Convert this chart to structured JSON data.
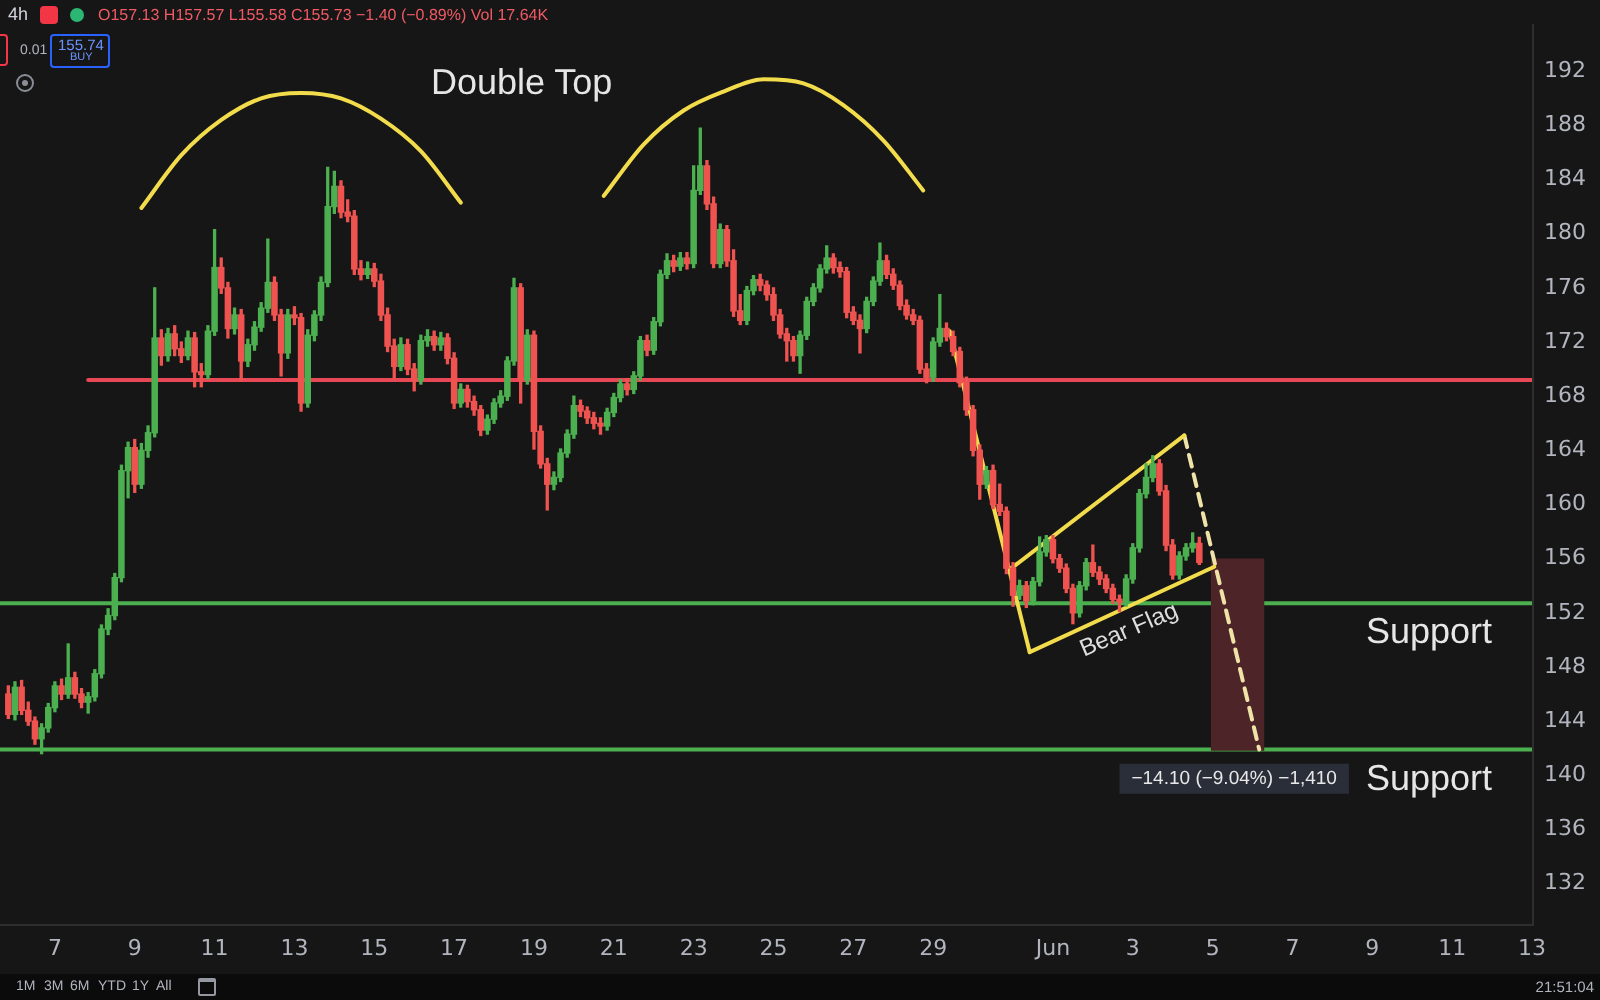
{
  "chart_data": {
    "type": "candlestick",
    "title": "4h",
    "subtitle": "O157.13 H157.57 L155.58 C155.73 −1.40 (−0.89%) Vol 17.64K",
    "x": [
      "--05-05T20:00",
      "--05-06T00:00",
      "--05-06T04:00",
      "--05-06T08:00",
      "--05-06T12:00",
      "--05-06T16:00",
      "--05-06T20:00",
      "--05-07T00:00",
      "--05-07T04:00",
      "--05-07T08:00",
      "--05-07T12:00",
      "--05-07T16:00",
      "--05-07T20:00",
      "--05-08T00:00",
      "--05-08T04:00",
      "--05-08T08:00",
      "--05-08T12:00",
      "--05-08T16:00",
      "--05-08T20:00",
      "--05-09T00:00",
      "--05-09T04:00",
      "--05-09T08:00",
      "--05-09T12:00",
      "--05-09T16:00",
      "--05-09T20:00",
      "--05-10T00:00",
      "--05-10T04:00",
      "--05-10T08:00",
      "--05-10T12:00",
      "--05-10T16:00",
      "--05-10T20:00",
      "--05-11T00:00",
      "--05-11T04:00",
      "--05-11T08:00",
      "--05-11T12:00",
      "--05-11T16:00",
      "--05-11T20:00",
      "--05-12T00:00",
      "--05-12T04:00",
      "--05-12T08:00",
      "--05-12T12:00",
      "--05-12T16:00",
      "--05-12T20:00",
      "--05-13T00:00",
      "--05-13T04:00",
      "--05-13T08:00",
      "--05-13T12:00",
      "--05-13T16:00",
      "--05-13T20:00",
      "--05-14T00:00",
      "--05-14T04:00",
      "--05-14T08:00",
      "--05-14T12:00",
      "--05-14T16:00",
      "--05-14T20:00",
      "--05-15T00:00",
      "--05-15T04:00",
      "--05-15T08:00",
      "--05-15T12:00",
      "--05-15T16:00",
      "--05-15T20:00",
      "--05-16T00:00",
      "--05-16T04:00",
      "--05-16T08:00",
      "--05-16T12:00",
      "--05-16T16:00",
      "--05-16T20:00",
      "--05-17T00:00",
      "--05-17T04:00",
      "--05-17T08:00",
      "--05-17T12:00",
      "--05-17T16:00",
      "--05-17T20:00",
      "--05-18T00:00",
      "--05-18T04:00",
      "--05-18T08:00",
      "--05-18T12:00",
      "--05-18T16:00",
      "--05-18T20:00",
      "--05-19T00:00",
      "--05-19T04:00",
      "--05-19T08:00",
      "--05-19T12:00",
      "--05-19T16:00",
      "--05-19T20:00",
      "--05-20T00:00",
      "--05-20T04:00",
      "--05-20T08:00",
      "--05-20T12:00",
      "--05-20T16:00",
      "--05-20T20:00",
      "--05-21T00:00",
      "--05-21T04:00",
      "--05-21T08:00",
      "--05-21T12:00",
      "--05-21T16:00",
      "--05-21T20:00",
      "--05-22T00:00",
      "--05-22T04:00",
      "--05-22T08:00",
      "--05-22T12:00",
      "--05-22T16:00",
      "--05-22T20:00",
      "--05-23T00:00",
      "--05-23T04:00",
      "--05-23T08:00",
      "--05-23T12:00",
      "--05-23T16:00",
      "--05-23T20:00",
      "--05-24T00:00",
      "--05-24T04:00",
      "--05-24T08:00",
      "--05-24T12:00",
      "--05-24T16:00",
      "--05-24T20:00",
      "--05-25T00:00",
      "--05-25T04:00",
      "--05-25T08:00",
      "--05-25T12:00",
      "--05-25T16:00",
      "--05-25T20:00",
      "--05-26T00:00",
      "--05-26T04:00",
      "--05-26T08:00",
      "--05-26T12:00",
      "--05-26T16:00",
      "--05-26T20:00",
      "--05-27T00:00",
      "--05-27T04:00",
      "--05-27T08:00",
      "--05-27T12:00",
      "--05-27T16:00",
      "--05-27T20:00",
      "--05-28T00:00",
      "--05-28T04:00",
      "--05-28T08:00",
      "--05-28T12:00",
      "--05-28T16:00",
      "--05-28T20:00",
      "--05-29T00:00",
      "--05-29T04:00",
      "--05-29T08:00",
      "--05-29T12:00",
      "--05-29T16:00",
      "--05-29T20:00",
      "--05-30T00:00",
      "--05-30T04:00",
      "--05-30T08:00",
      "--05-30T12:00",
      "--05-30T16:00",
      "--05-30T20:00",
      "--05-31T00:00",
      "--05-31T04:00",
      "--05-31T08:00",
      "--05-31T12:00",
      "--05-31T16:00",
      "--05-31T20:00",
      "--06-01T00:00",
      "--06-01T04:00",
      "--06-01T08:00",
      "--06-01T12:00",
      "--06-01T16:00",
      "--06-01T20:00",
      "--06-02T00:00",
      "--06-02T04:00",
      "--06-02T08:00",
      "--06-02T12:00",
      "--06-02T16:00",
      "--06-02T20:00",
      "--06-03T00:00",
      "--06-03T04:00",
      "--06-03T08:00",
      "--06-03T12:00",
      "--06-03T16:00",
      "--06-03T20:00",
      "--06-04T00:00",
      "--06-04T04:00",
      "--06-04T08:00",
      "--06-04T12:00",
      "--06-04T16:00"
    ],
    "ohlc": [
      [
        146.0,
        146.6,
        144.2,
        144.5
      ],
      [
        144.5,
        146.9,
        144.1,
        146.5
      ],
      [
        146.5,
        147.0,
        144.5,
        144.8
      ],
      [
        144.8,
        145.4,
        143.7,
        144.0
      ],
      [
        144.0,
        144.3,
        142.3,
        142.7
      ],
      [
        142.7,
        143.8,
        141.6,
        143.5
      ],
      [
        143.5,
        145.3,
        143.2,
        145.0
      ],
      [
        145.0,
        146.9,
        144.7,
        146.6
      ],
      [
        146.6,
        147.1,
        145.6,
        146.0
      ],
      [
        146.0,
        149.7,
        145.7,
        147.2
      ],
      [
        147.2,
        147.6,
        145.7,
        146.0
      ],
      [
        146.0,
        146.4,
        145.0,
        145.4
      ],
      [
        145.4,
        146.1,
        144.6,
        145.8
      ],
      [
        145.8,
        147.8,
        145.5,
        147.5
      ],
      [
        147.5,
        151.1,
        147.2,
        150.8
      ],
      [
        150.8,
        152.3,
        150.4,
        151.8
      ],
      [
        151.8,
        154.9,
        151.5,
        154.6
      ],
      [
        154.6,
        162.9,
        154.3,
        162.5
      ],
      [
        162.5,
        164.6,
        160.5,
        164.2
      ],
      [
        164.2,
        164.8,
        160.9,
        161.5
      ],
      [
        161.5,
        164.5,
        161.2,
        164.0
      ],
      [
        164.0,
        165.8,
        163.5,
        165.3
      ],
      [
        165.3,
        176.0,
        165.0,
        172.3
      ],
      [
        172.3,
        172.9,
        170.3,
        171.0
      ],
      [
        171.0,
        173.0,
        170.6,
        172.6
      ],
      [
        172.6,
        173.2,
        171.0,
        171.5
      ],
      [
        171.5,
        172.0,
        170.5,
        171.0
      ],
      [
        171.0,
        172.8,
        170.7,
        172.3
      ],
      [
        172.3,
        172.7,
        168.7,
        169.8
      ],
      [
        169.8,
        170.4,
        168.7,
        169.6
      ],
      [
        169.6,
        173.2,
        169.3,
        172.8
      ],
      [
        172.8,
        180.3,
        172.5,
        177.5
      ],
      [
        177.5,
        178.2,
        175.6,
        176.0
      ],
      [
        176.0,
        176.4,
        172.3,
        173.0
      ],
      [
        173.0,
        174.5,
        172.6,
        174.0
      ],
      [
        174.0,
        174.4,
        169.2,
        170.6
      ],
      [
        170.6,
        172.2,
        170.2,
        171.8
      ],
      [
        171.8,
        173.5,
        171.4,
        173.1
      ],
      [
        173.1,
        174.9,
        172.8,
        174.5
      ],
      [
        174.5,
        179.6,
        174.2,
        176.4
      ],
      [
        176.4,
        176.8,
        173.6,
        174.0
      ],
      [
        174.0,
        174.4,
        169.5,
        171.2
      ],
      [
        171.2,
        174.4,
        170.8,
        174.0
      ],
      [
        174.0,
        174.6,
        173.3,
        173.8
      ],
      [
        173.8,
        174.1,
        166.9,
        167.5
      ],
      [
        167.5,
        172.9,
        167.2,
        172.5
      ],
      [
        172.5,
        174.3,
        172.1,
        174.0
      ],
      [
        174.0,
        176.8,
        173.6,
        176.4
      ],
      [
        176.4,
        184.9,
        176.1,
        182.0
      ],
      [
        182.0,
        184.6,
        181.5,
        183.5
      ],
      [
        183.5,
        183.9,
        181.2,
        181.6
      ],
      [
        181.6,
        182.5,
        180.9,
        181.3
      ],
      [
        181.3,
        181.7,
        177.0,
        177.4
      ],
      [
        177.4,
        178.0,
        176.6,
        177.0
      ],
      [
        177.0,
        177.9,
        176.7,
        177.4
      ],
      [
        177.4,
        177.8,
        176.1,
        176.5
      ],
      [
        176.5,
        177.0,
        173.6,
        174.0
      ],
      [
        174.0,
        174.5,
        171.3,
        171.7
      ],
      [
        171.7,
        172.2,
        169.3,
        170.2
      ],
      [
        170.2,
        172.3,
        169.9,
        171.8
      ],
      [
        171.8,
        172.2,
        169.6,
        170.0
      ],
      [
        170.0,
        170.4,
        168.4,
        169.2
      ],
      [
        169.2,
        172.5,
        168.9,
        172.1
      ],
      [
        172.1,
        172.9,
        171.7,
        172.4
      ],
      [
        172.4,
        172.8,
        171.4,
        171.8
      ],
      [
        171.8,
        172.7,
        171.4,
        172.3
      ],
      [
        172.3,
        172.6,
        170.4,
        170.8
      ],
      [
        170.8,
        171.2,
        167.1,
        167.5
      ],
      [
        167.5,
        168.9,
        167.2,
        168.5
      ],
      [
        168.5,
        168.8,
        167.2,
        167.6
      ],
      [
        167.6,
        168.0,
        166.6,
        167.0
      ],
      [
        167.0,
        167.3,
        165.1,
        165.5
      ],
      [
        165.5,
        166.6,
        165.2,
        166.3
      ],
      [
        166.3,
        167.8,
        166.0,
        167.5
      ],
      [
        167.5,
        168.4,
        167.2,
        168.0
      ],
      [
        168.0,
        170.9,
        167.7,
        170.6
      ],
      [
        170.6,
        176.7,
        170.3,
        176.0
      ],
      [
        176.0,
        176.3,
        167.5,
        169.2
      ],
      [
        169.2,
        172.9,
        168.9,
        172.5
      ],
      [
        172.5,
        172.8,
        164.1,
        165.4
      ],
      [
        165.4,
        165.8,
        162.7,
        163.0
      ],
      [
        163.0,
        163.4,
        159.6,
        161.5
      ],
      [
        161.5,
        162.4,
        161.1,
        162.0
      ],
      [
        162.0,
        164.1,
        161.7,
        163.8
      ],
      [
        163.8,
        165.5,
        163.5,
        165.2
      ],
      [
        165.2,
        168.0,
        164.9,
        167.3
      ],
      [
        167.3,
        167.7,
        166.5,
        166.9
      ],
      [
        166.9,
        167.2,
        166.0,
        166.4
      ],
      [
        166.4,
        166.8,
        165.6,
        166.0
      ],
      [
        166.0,
        166.4,
        165.2,
        165.8
      ],
      [
        165.8,
        167.1,
        165.5,
        166.8
      ],
      [
        166.8,
        168.2,
        166.5,
        167.9
      ],
      [
        167.9,
        169.2,
        167.6,
        168.9
      ],
      [
        168.9,
        169.3,
        168.1,
        168.5
      ],
      [
        168.5,
        169.8,
        168.2,
        169.5
      ],
      [
        169.5,
        172.4,
        169.2,
        172.1
      ],
      [
        172.1,
        172.5,
        171.0,
        171.4
      ],
      [
        171.4,
        173.8,
        171.1,
        173.5
      ],
      [
        173.5,
        177.3,
        173.2,
        177.0
      ],
      [
        177.0,
        178.5,
        176.7,
        178.0
      ],
      [
        178.0,
        178.4,
        177.2,
        177.6
      ],
      [
        177.6,
        178.6,
        177.3,
        178.2
      ],
      [
        178.2,
        178.6,
        177.4,
        177.8
      ],
      [
        177.8,
        185.0,
        177.5,
        183.2
      ],
      [
        183.2,
        187.8,
        182.9,
        185.0
      ],
      [
        185.0,
        185.4,
        181.8,
        182.2
      ],
      [
        182.2,
        182.7,
        177.5,
        177.8
      ],
      [
        177.8,
        180.7,
        177.5,
        180.3
      ],
      [
        180.3,
        180.6,
        177.6,
        178.0
      ],
      [
        178.0,
        178.8,
        173.9,
        174.3
      ],
      [
        174.3,
        175.5,
        173.3,
        173.6
      ],
      [
        173.6,
        176.1,
        173.3,
        175.8
      ],
      [
        175.8,
        176.9,
        175.5,
        176.6
      ],
      [
        176.6,
        177.0,
        175.8,
        176.2
      ],
      [
        176.2,
        176.5,
        175.1,
        175.5
      ],
      [
        175.5,
        176.0,
        173.6,
        174.0
      ],
      [
        174.0,
        174.4,
        172.3,
        172.6
      ],
      [
        172.6,
        173.0,
        170.6,
        172.1
      ],
      [
        172.1,
        172.4,
        170.6,
        171.0
      ],
      [
        171.0,
        172.8,
        169.7,
        172.5
      ],
      [
        172.5,
        175.3,
        172.2,
        175.0
      ],
      [
        175.0,
        176.3,
        174.7,
        176.0
      ],
      [
        176.0,
        177.7,
        175.7,
        177.4
      ],
      [
        177.4,
        179.1,
        177.1,
        178.2
      ],
      [
        178.2,
        178.5,
        177.1,
        177.5
      ],
      [
        177.5,
        177.9,
        176.8,
        177.2
      ],
      [
        177.2,
        177.5,
        173.8,
        174.2
      ],
      [
        174.2,
        174.6,
        173.3,
        173.6
      ],
      [
        173.6,
        174.0,
        171.2,
        173.0
      ],
      [
        173.0,
        175.3,
        172.7,
        175.0
      ],
      [
        175.0,
        176.8,
        174.7,
        176.5
      ],
      [
        176.5,
        179.3,
        176.2,
        178.0
      ],
      [
        178.0,
        178.4,
        176.7,
        177.0
      ],
      [
        177.0,
        177.4,
        175.9,
        176.2
      ],
      [
        176.2,
        176.5,
        174.4,
        174.7
      ],
      [
        174.7,
        175.1,
        173.7,
        174.0
      ],
      [
        174.0,
        174.4,
        173.3,
        173.6
      ],
      [
        173.6,
        173.9,
        169.7,
        170.0
      ],
      [
        170.0,
        170.4,
        169.0,
        169.4
      ],
      [
        169.4,
        172.3,
        169.1,
        172.0
      ],
      [
        172.0,
        175.5,
        171.7,
        173.0
      ],
      [
        173.0,
        173.4,
        172.1,
        172.4
      ],
      [
        172.4,
        172.8,
        171.0,
        171.3
      ],
      [
        171.3,
        171.6,
        168.7,
        169.0
      ],
      [
        169.0,
        169.4,
        166.6,
        167.0
      ],
      [
        167.0,
        167.3,
        163.6,
        164.0
      ],
      [
        164.0,
        164.4,
        160.4,
        161.5
      ],
      [
        161.5,
        162.8,
        161.2,
        162.5
      ],
      [
        162.5,
        162.9,
        159.7,
        160.0
      ],
      [
        160.0,
        161.5,
        159.2,
        159.5
      ],
      [
        159.5,
        159.8,
        154.9,
        155.3
      ],
      [
        155.3,
        155.7,
        152.5,
        153.3
      ],
      [
        153.3,
        154.4,
        153.0,
        154.0
      ],
      [
        154.0,
        154.3,
        152.4,
        152.9
      ],
      [
        152.9,
        154.6,
        152.6,
        154.3
      ],
      [
        154.3,
        157.6,
        154.0,
        156.5
      ],
      [
        156.5,
        157.7,
        156.2,
        157.4
      ],
      [
        157.4,
        157.7,
        155.7,
        156.0
      ],
      [
        156.0,
        156.3,
        155.0,
        155.3
      ],
      [
        155.3,
        155.6,
        153.5,
        153.8
      ],
      [
        153.8,
        154.1,
        151.2,
        152.0
      ],
      [
        152.0,
        154.3,
        151.7,
        154.0
      ],
      [
        154.0,
        156.0,
        153.7,
        155.7
      ],
      [
        155.7,
        157.0,
        154.7,
        155.0
      ],
      [
        155.0,
        155.4,
        154.1,
        154.5
      ],
      [
        154.5,
        154.8,
        153.5,
        153.8
      ],
      [
        153.8,
        154.1,
        152.7,
        153.0
      ],
      [
        153.0,
        153.3,
        152.1,
        152.8
      ],
      [
        152.8,
        154.8,
        152.5,
        154.5
      ],
      [
        154.5,
        157.1,
        154.2,
        156.8
      ],
      [
        156.8,
        161.1,
        156.5,
        160.8
      ],
      [
        160.8,
        163.0,
        160.5,
        162.0
      ],
      [
        162.0,
        163.6,
        161.7,
        163.0
      ],
      [
        163.0,
        163.3,
        160.7,
        161.0
      ],
      [
        161.0,
        161.4,
        156.6,
        157.0
      ],
      [
        157.0,
        157.4,
        154.5,
        154.8
      ],
      [
        154.8,
        156.5,
        154.5,
        156.2
      ],
      [
        156.2,
        157.1,
        155.9,
        156.8
      ],
      [
        156.8,
        157.9,
        156.5,
        157.13
      ],
      [
        157.13,
        157.57,
        155.58,
        155.73
      ]
    ],
    "colors": [
      "#ef5350",
      "#4caf50",
      "#ef5350",
      "#ef5350",
      "#ef5350",
      "#4caf50",
      "#4caf50",
      "#4caf50",
      "#ef5350",
      "#4caf50",
      "#ef5350",
      "#ef5350",
      "#4caf50",
      "#4caf50",
      "#4caf50",
      "#4caf50",
      "#4caf50",
      "#4caf50",
      "#4caf50",
      "#ef5350",
      "#4caf50",
      "#4caf50",
      "#4caf50",
      "#ef5350",
      "#4caf50",
      "#ef5350",
      "#ef5350",
      "#4caf50",
      "#ef5350",
      "#ef5350",
      "#4caf50",
      "#4caf50",
      "#ef5350",
      "#ef5350",
      "#4caf50",
      "#ef5350",
      "#4caf50",
      "#4caf50",
      "#4caf50",
      "#4caf50",
      "#ef5350",
      "#ef5350",
      "#4caf50",
      "#ef5350",
      "#ef5350",
      "#4caf50",
      "#4caf50",
      "#4caf50",
      "#4caf50",
      "#4caf50",
      "#ef5350",
      "#ef5350",
      "#ef5350",
      "#ef5350",
      "#4caf50",
      "#ef5350",
      "#ef5350",
      "#ef5350",
      "#ef5350",
      "#4caf50",
      "#ef5350",
      "#ef5350",
      "#4caf50",
      "#4caf50",
      "#ef5350",
      "#4caf50",
      "#ef5350",
      "#ef5350",
      "#4caf50",
      "#ef5350",
      "#ef5350",
      "#ef5350",
      "#4caf50",
      "#4caf50",
      "#4caf50",
      "#4caf50",
      "#4caf50",
      "#ef5350",
      "#4caf50",
      "#ef5350",
      "#ef5350",
      "#ef5350",
      "#4caf50",
      "#4caf50",
      "#4caf50",
      "#4caf50",
      "#ef5350",
      "#ef5350",
      "#ef5350",
      "#ef5350",
      "#4caf50",
      "#4caf50",
      "#4caf50",
      "#ef5350",
      "#4caf50",
      "#4caf50",
      "#ef5350",
      "#4caf50",
      "#4caf50",
      "#4caf50",
      "#ef5350",
      "#4caf50",
      "#ef5350",
      "#4caf50",
      "#4caf50",
      "#ef5350",
      "#ef5350",
      "#4caf50",
      "#ef5350",
      "#ef5350",
      "#ef5350",
      "#4caf50",
      "#4caf50",
      "#ef5350",
      "#ef5350",
      "#ef5350",
      "#ef5350",
      "#ef5350",
      "#ef5350",
      "#4caf50",
      "#4caf50",
      "#4caf50",
      "#4caf50",
      "#4caf50",
      "#ef5350",
      "#ef5350",
      "#ef5350",
      "#ef5350",
      "#ef5350",
      "#4caf50",
      "#4caf50",
      "#4caf50",
      "#ef5350",
      "#ef5350",
      "#ef5350",
      "#ef5350",
      "#ef5350",
      "#ef5350",
      "#ef5350",
      "#4caf50",
      "#4caf50",
      "#ef5350",
      "#ef5350",
      "#ef5350",
      "#ef5350",
      "#ef5350",
      "#ef5350",
      "#4caf50",
      "#ef5350",
      "#ef5350",
      "#ef5350",
      "#ef5350",
      "#4caf50",
      "#ef5350",
      "#4caf50",
      "#4caf50",
      "#4caf50",
      "#ef5350",
      "#ef5350",
      "#ef5350",
      "#ef5350",
      "#4caf50",
      "#4caf50",
      "#ef5350",
      "#ef5350",
      "#ef5350",
      "#ef5350",
      "#ef5350",
      "#4caf50",
      "#4caf50",
      "#4caf50",
      "#4caf50",
      "#4caf50",
      "#ef5350",
      "#ef5350",
      "#ef5350",
      "#4caf50",
      "#4caf50",
      "#4caf50",
      "#ef5350"
    ],
    "series": [
      {
        "type": "line",
        "color": "#e84855",
        "x": [
          "--05-07T20:00",
          "--06-13T00:00"
        ],
        "values": [
          169.2,
          169.2
        ]
      },
      {
        "type": "line",
        "color": "#f2dc4c",
        "x": [
          "--05-09T04:00",
          "--05-10T04:00",
          "--05-11T04:00",
          "--05-12T04:00",
          "--05-13T04:00",
          "--05-14T04:00",
          "--05-15T04:00",
          "--05-16T04:00",
          "--05-17T04:00"
        ],
        "values": [
          181.9,
          185.8,
          188.4,
          190.0,
          190.4,
          190.0,
          188.5,
          186.1,
          182.3
        ]
      },
      {
        "type": "line",
        "color": "#f2dc4c",
        "x": [
          "--05-20T18:00",
          "--05-21T18:00",
          "--05-22T18:00",
          "--05-23T18:00",
          "--05-24T18:00",
          "--05-25T18:00",
          "--05-26T18:00",
          "--05-27T18:00",
          "--05-28T18:00"
        ],
        "values": [
          182.8,
          186.6,
          189.1,
          190.5,
          191.4,
          191.1,
          189.5,
          186.9,
          183.2
        ]
      },
      {
        "type": "line",
        "color": "#f2dc4c",
        "x": [
          "--05-29T10:00",
          "--05-31T10:00"
        ],
        "values": [
          172.8,
          149.1
        ]
      },
      {
        "type": "line",
        "color": "#f2dc4c",
        "x": [
          "--05-30T22:00",
          "--06-04T07:00"
        ],
        "values": [
          155.2,
          165.1
        ]
      },
      {
        "type": "line",
        "color": "#f2dc4c",
        "x": [
          "--05-31T10:00",
          "--06-05T01:00"
        ],
        "values": [
          149.1,
          155.4
        ]
      },
      {
        "type": "line",
        "color": "#efe3a8",
        "line_style": "dashed",
        "x": [
          "--06-04T07:00",
          "--06-06T04:00"
        ],
        "values": [
          165.1,
          141.9
        ]
      },
      {
        "type": "bar",
        "color": "#4d2528",
        "x": [
          "--06-05T15:00"
        ],
        "base": [
          155.97
        ],
        "values": [
          -14.1
        ]
      }
    ],
    "ref_lines": [
      {
        "axis": "y",
        "value": 152.7,
        "label": "Support",
        "color": "#4caf50"
      },
      {
        "axis": "y",
        "value": 141.9,
        "label": "Support",
        "color": "#4caf50"
      }
    ],
    "annotations": [
      "Double Top",
      "Bear Flag",
      "−14.10 (−9.04%) −1,410",
      "0.01",
      "155.74",
      "BUY",
      "1M",
      "3M",
      "6M",
      "YTD",
      "1Y",
      "All",
      "21:51:04"
    ],
    "xlim": [
      "--05-05T15:00",
      "--06-13T00:00"
    ],
    "xticks": [
      {
        "value": "--05-07",
        "label": "7"
      },
      {
        "value": "--05-09",
        "label": "9"
      },
      {
        "value": "--05-11",
        "label": "11"
      },
      {
        "value": "--05-13",
        "label": "13"
      },
      {
        "value": "--05-15",
        "label": "15"
      },
      {
        "value": "--05-17",
        "label": "17"
      },
      {
        "value": "--05-19",
        "label": "19"
      },
      {
        "value": "--05-21",
        "label": "21"
      },
      {
        "value": "--05-23",
        "label": "23"
      },
      {
        "value": "--05-25",
        "label": "25"
      },
      {
        "value": "--05-27",
        "label": "27"
      },
      {
        "value": "--05-29",
        "label": "29"
      },
      {
        "value": "--06-01",
        "label": "Jun"
      },
      {
        "value": "--06-03",
        "label": "3"
      },
      {
        "value": "--06-05",
        "label": "5"
      },
      {
        "value": "--06-07",
        "label": "7"
      },
      {
        "value": "--06-09",
        "label": "9"
      },
      {
        "value": "--06-11",
        "label": "11"
      },
      {
        "value": "--06-13",
        "label": "13"
      }
    ],
    "ylim": [
      128.9,
      195.4
    ],
    "yticks": [
      132,
      136,
      140,
      144,
      148,
      152,
      156,
      160,
      164,
      168,
      172,
      176,
      180,
      184,
      188,
      192
    ]
  }
}
